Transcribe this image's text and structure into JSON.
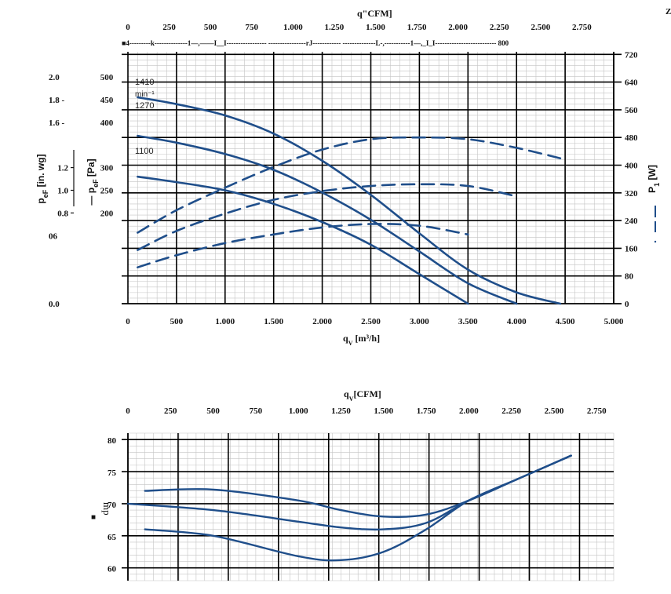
{
  "corner_mark": "Z",
  "chart_data": [
    {
      "type": "line",
      "name": "pressure_power_curves",
      "title": "",
      "top_axis": {
        "label": "q\"CFM]",
        "ticks": [
          "0",
          "250",
          "500",
          "750",
          "1.000",
          "1.250",
          "1.500",
          "1.750",
          "2.000",
          "2.250",
          "2.500",
          "2.750"
        ],
        "scale_text": "■4---------k--------------1—,——I__I----------------- ----------------rJ------------ --------------L-,-----------1—,_I_I-------------------------- 800"
      },
      "x_axis": {
        "label": "q",
        "label_sub": "V",
        "label_unit": " [m³/h]",
        "ticks": [
          "0",
          "500",
          "1.000",
          "1.500",
          "2.000",
          "2.500",
          "3.000",
          "3.500",
          "4.000",
          "4.500",
          "5.000"
        ],
        "range": [
          0,
          5000
        ]
      },
      "left_inwg_axis": {
        "label": "p",
        "label_sub": "eF",
        "label_unit": " [in. wg]",
        "outer_ticks": [
          {
            "text": "2.0",
            "pa": 500
          },
          {
            "text": "1.8 -",
            "pa": 450
          },
          {
            "text": "1.6 -",
            "pa": 400
          },
          {
            "text": "06",
            "pa": 150
          },
          {
            "text": "0.0",
            "pa": 0
          }
        ],
        "inner_ticks": [
          {
            "text": "1.2",
            "pa": 300
          },
          {
            "text": "1.0",
            "pa": 250
          },
          {
            "text": "0.8",
            "pa": 200
          }
        ]
      },
      "left_pa_axis": {
        "label": "p",
        "label_sub": "eF",
        "label_unit": " [Pa]",
        "range": [
          0,
          500
        ],
        "ticks": [
          {
            "text": "500",
            "pa": 500
          },
          {
            "text": "450",
            "pa": 450
          },
          {
            "text": "400",
            "pa": 400
          },
          {
            "text": "300",
            "pa": 300
          },
          {
            "text": "250",
            "pa": 250
          },
          {
            "text": "200",
            "pa": 200
          }
        ]
      },
      "right_axis": {
        "label": "P",
        "label_sub": "1",
        "label_unit": " [W]",
        "range": [
          0,
          800
        ],
        "ticks": [
          "720",
          "640",
          "560",
          "480",
          "400",
          "320",
          "240",
          "160",
          "80",
          "0"
        ],
        "tick_values": [
          720,
          640,
          560,
          480,
          400,
          320,
          240,
          160,
          80,
          0
        ]
      },
      "speed_labels": [
        "1410",
        "min⁻¹",
        "1270",
        "1100"
      ],
      "series": [
        {
          "name": "1410",
          "kind": "pressure",
          "x": [
            100,
            500,
            1000,
            1500,
            2000,
            2500,
            3000,
            3500,
            4000,
            4450
          ],
          "y": [
            455,
            440,
            415,
            375,
            315,
            240,
            155,
            75,
            25,
            0
          ]
        },
        {
          "name": "1270",
          "kind": "pressure",
          "x": [
            100,
            500,
            1000,
            1500,
            2000,
            2500,
            3000,
            3500,
            4000
          ],
          "y": [
            370,
            355,
            330,
            295,
            245,
            185,
            115,
            45,
            0
          ]
        },
        {
          "name": "1100",
          "kind": "pressure",
          "x": [
            100,
            500,
            1000,
            1500,
            2000,
            2500,
            3000,
            3500
          ],
          "y": [
            280,
            268,
            250,
            220,
            180,
            130,
            65,
            0
          ]
        },
        {
          "name": "1410",
          "kind": "power",
          "x": [
            100,
            500,
            1000,
            1500,
            2000,
            2500,
            3000,
            3500,
            4000,
            4450
          ],
          "y": [
            205,
            270,
            335,
            395,
            445,
            475,
            480,
            475,
            450,
            420
          ]
        },
        {
          "name": "1270",
          "kind": "power",
          "x": [
            100,
            500,
            1000,
            1500,
            2000,
            2500,
            3000,
            3500,
            4000
          ],
          "y": [
            155,
            210,
            260,
            300,
            325,
            340,
            345,
            340,
            310
          ]
        },
        {
          "name": "1100",
          "kind": "power",
          "x": [
            100,
            500,
            1000,
            1500,
            2000,
            2500,
            3000,
            3500
          ],
          "y": [
            105,
            140,
            175,
            200,
            220,
            230,
            225,
            200
          ]
        }
      ],
      "grid": true,
      "colors": {
        "curve": "#1f4e8a",
        "grid_major": "#000000",
        "grid_minor": "#bdbdbd"
      }
    },
    {
      "type": "line",
      "name": "noise_curves",
      "title": "",
      "top_axis": {
        "label": "q",
        "label_sub": "V",
        "label_unit": "[CFM]",
        "ticks": [
          "0",
          "250",
          "500",
          "750",
          "1.000",
          "1.250",
          "1.500",
          "1.750",
          "2.000",
          "2.250",
          "2.500",
          "2.750"
        ]
      },
      "y_axis": {
        "label": "mp",
        "marker": "■",
        "ticks": [
          "80",
          "75",
          "70",
          "65",
          "60"
        ],
        "tick_values": [
          80,
          75,
          70,
          65,
          60
        ],
        "range": [
          58,
          81
        ]
      },
      "x_range_cfm": [
        0,
        2850
      ],
      "series": [
        {
          "x": [
            100,
            500,
            1000,
            1250,
            1500,
            1750,
            2000,
            2300,
            2600
          ],
          "y": [
            72,
            72.2,
            70.5,
            69,
            68,
            68.3,
            70.5,
            74,
            77.5
          ]
        },
        {
          "x": [
            0,
            500,
            1000,
            1250,
            1500,
            1750,
            2000,
            2300,
            2600
          ],
          "y": [
            70,
            69,
            67.2,
            66.3,
            66,
            67,
            70.5,
            74,
            77.5
          ]
        },
        {
          "x": [
            100,
            500,
            1000,
            1250,
            1500,
            1750,
            2000,
            2300,
            2600
          ],
          "y": [
            66,
            65,
            61.8,
            61.2,
            62.5,
            66,
            70.5,
            74,
            77.5
          ]
        }
      ],
      "grid": true,
      "colors": {
        "curve": "#1f4e8a",
        "grid_major": "#000000",
        "grid_minor": "#bdbdbd"
      }
    }
  ]
}
